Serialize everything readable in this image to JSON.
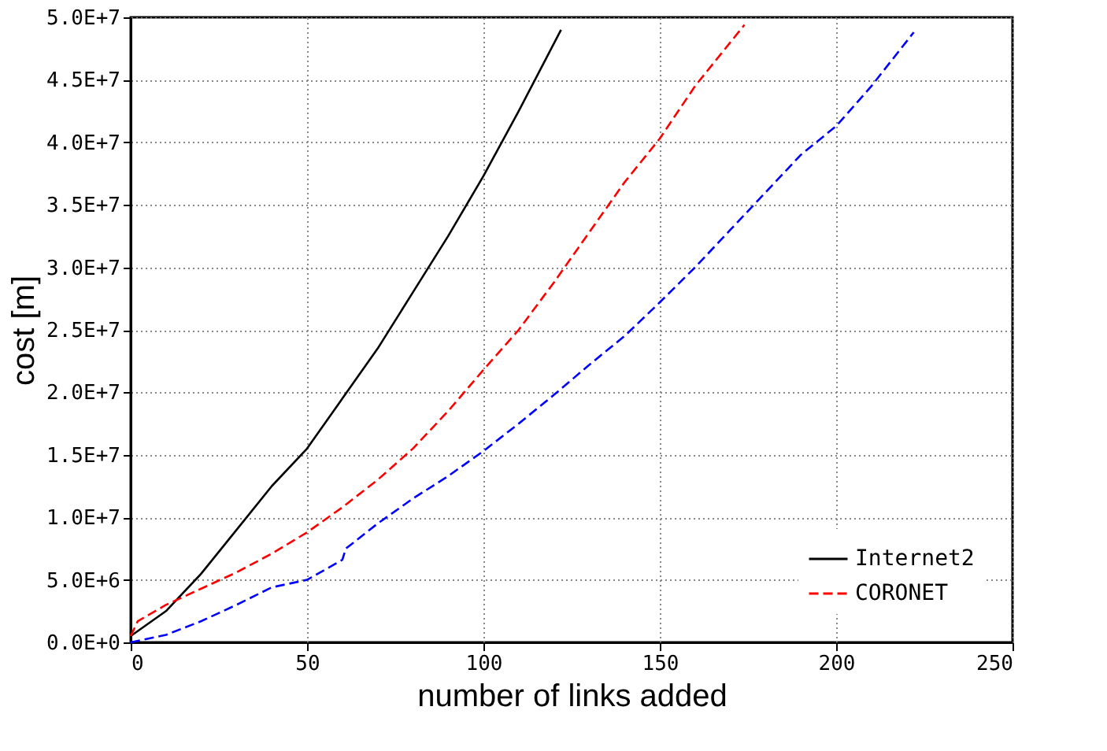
{
  "chart_data": {
    "type": "line",
    "xlabel": "number of links added",
    "ylabel": "cost [m]",
    "xlim": [
      0,
      250
    ],
    "xticks": [
      0,
      50,
      100,
      150,
      200,
      250
    ],
    "ylim": [
      0,
      50000000
    ],
    "yticks": [
      {
        "value": 0,
        "label": "0.0E+0"
      },
      {
        "value": 5000000,
        "label": "5.0E+6"
      },
      {
        "value": 10000000,
        "label": "1.0E+7"
      },
      {
        "value": 15000000,
        "label": "1.5E+7"
      },
      {
        "value": 20000000,
        "label": "2.0E+7"
      },
      {
        "value": 25000000,
        "label": "2.5E+7"
      },
      {
        "value": 30000000,
        "label": "3.0E+7"
      },
      {
        "value": 35000000,
        "label": "3.5E+7"
      },
      {
        "value": 40000000,
        "label": "4.0E+7"
      },
      {
        "value": 45000000,
        "label": "4.5E+7"
      },
      {
        "value": 50000000,
        "label": "5.0E+7"
      }
    ],
    "grid": true,
    "legend": "bottom right",
    "marker": "none",
    "series": [
      {
        "name": "Internet2",
        "color": "#000000",
        "line_style": "solid",
        "x": [
          0,
          10,
          20,
          30,
          40,
          50,
          60,
          70,
          80,
          90,
          100,
          110,
          122
        ],
        "values": [
          500000,
          2500000,
          5500000,
          9000000,
          12500000,
          15500000,
          19500000,
          23500000,
          28000000,
          32500000,
          37300000,
          42500000,
          49000000
        ]
      },
      {
        "name": "CORONET",
        "color": "#ff0000",
        "line_style": "dashed",
        "x": [
          0,
          2,
          10,
          20,
          30,
          40,
          50,
          60,
          70,
          80,
          90,
          100,
          110,
          120,
          130,
          140,
          150,
          160,
          174
        ],
        "values": [
          500000,
          1700000,
          3000000,
          4300000,
          5600000,
          7100000,
          8800000,
          10800000,
          13000000,
          15500000,
          18500000,
          21800000,
          25000000,
          28800000,
          32800000,
          36800000,
          40300000,
          44500000,
          49400000
        ]
      },
      {
        "color": "#0000ff",
        "line_style": "dashed",
        "x": [
          0,
          10,
          20,
          30,
          40,
          50,
          60,
          61,
          70,
          80,
          90,
          100,
          110,
          120,
          130,
          140,
          150,
          160,
          170,
          180,
          190,
          200,
          210,
          222
        ],
        "values": [
          0,
          600000,
          1700000,
          3000000,
          4400000,
          5000000,
          6600000,
          7500000,
          9500000,
          11500000,
          13300000,
          15300000,
          17500000,
          19800000,
          22200000,
          24500000,
          27200000,
          30000000,
          33000000,
          36000000,
          39000000,
          41300000,
          44500000,
          48800000
        ]
      }
    ]
  }
}
